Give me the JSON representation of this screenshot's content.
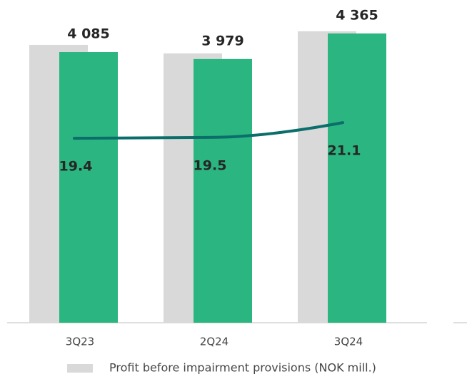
{
  "chart_data": {
    "type": "bar",
    "categories": [
      "3Q23",
      "2Q24",
      "3Q24"
    ],
    "ylim": [
      0,
      4870
    ],
    "y2lim": [
      -0.6,
      34.4
    ],
    "series": [
      {
        "name": "Profit before impairment provisions (NOK mill.)",
        "color": "#d9d9d9",
        "values": [
          4193,
          4064,
          4398
        ],
        "role": "shadow"
      },
      {
        "color": "#2bb580",
        "values": [
          4085,
          3979,
          4365
        ],
        "value_labels": [
          "4 085",
          "3 979",
          "4 365"
        ]
      },
      {
        "type": "line",
        "axis": "y2",
        "color": "#0b6e6b",
        "values": [
          19.4,
          19.5,
          21.1
        ]
      }
    ]
  }
}
